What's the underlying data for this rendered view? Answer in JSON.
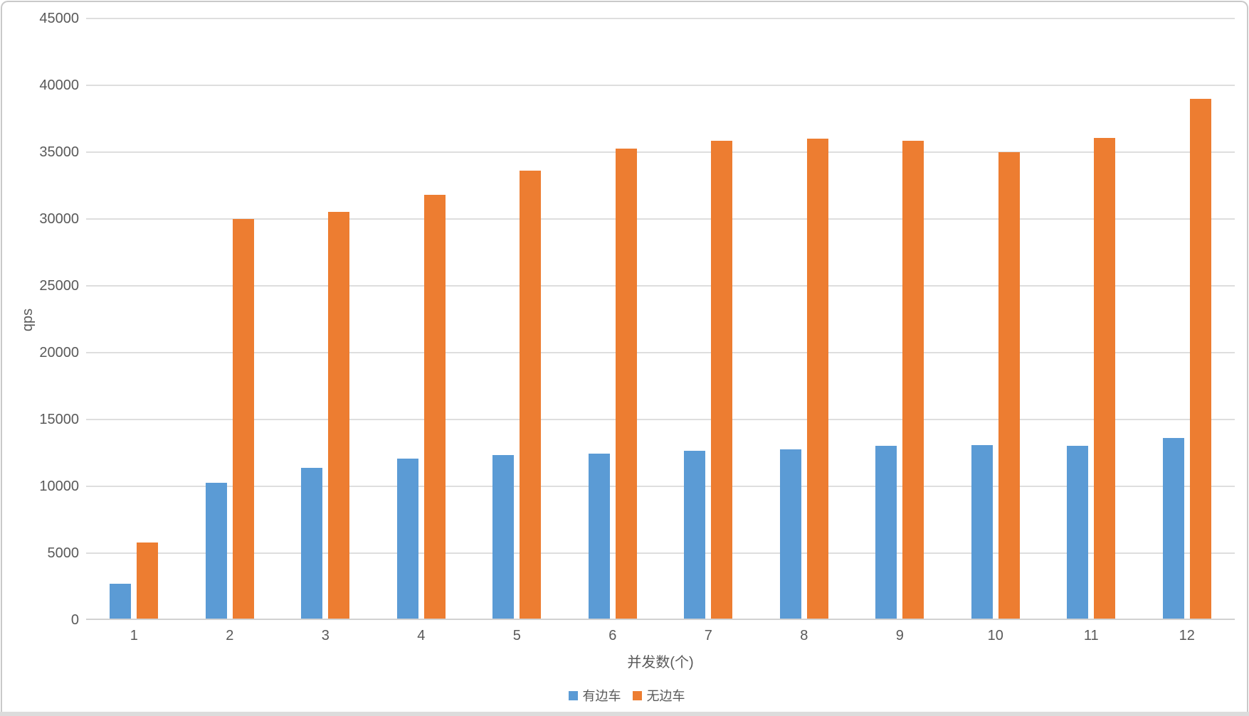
{
  "chart_data": {
    "type": "bar",
    "title": "",
    "xlabel": "并发数(个)",
    "ylabel": "qps",
    "categories": [
      "1",
      "2",
      "3",
      "4",
      "5",
      "6",
      "7",
      "8",
      "9",
      "10",
      "11",
      "12"
    ],
    "series": [
      {
        "name": "有边车",
        "color": "#5B9BD5",
        "values": [
          2600,
          10200,
          11300,
          12000,
          12250,
          12350,
          12600,
          12700,
          12950,
          13000,
          12950,
          13550
        ]
      },
      {
        "name": "无边车",
        "color": "#ED7D31",
        "values": [
          5700,
          29950,
          30500,
          31800,
          33600,
          35250,
          35850,
          36000,
          35850,
          35000,
          36050,
          38950
        ]
      }
    ],
    "ylim": [
      0,
      45000
    ],
    "yticks": [
      0,
      5000,
      10000,
      15000,
      20000,
      25000,
      30000,
      35000,
      40000,
      45000
    ],
    "grid": true,
    "legend_position": "bottom"
  },
  "style": {
    "gridline_color": "#dedede",
    "axis_line_color": "#d2d2d2",
    "text_color": "#595959",
    "window_border_color": "#c9c9c9",
    "bottom_band_color": "#dcdcdc",
    "background": "#ffffff"
  }
}
